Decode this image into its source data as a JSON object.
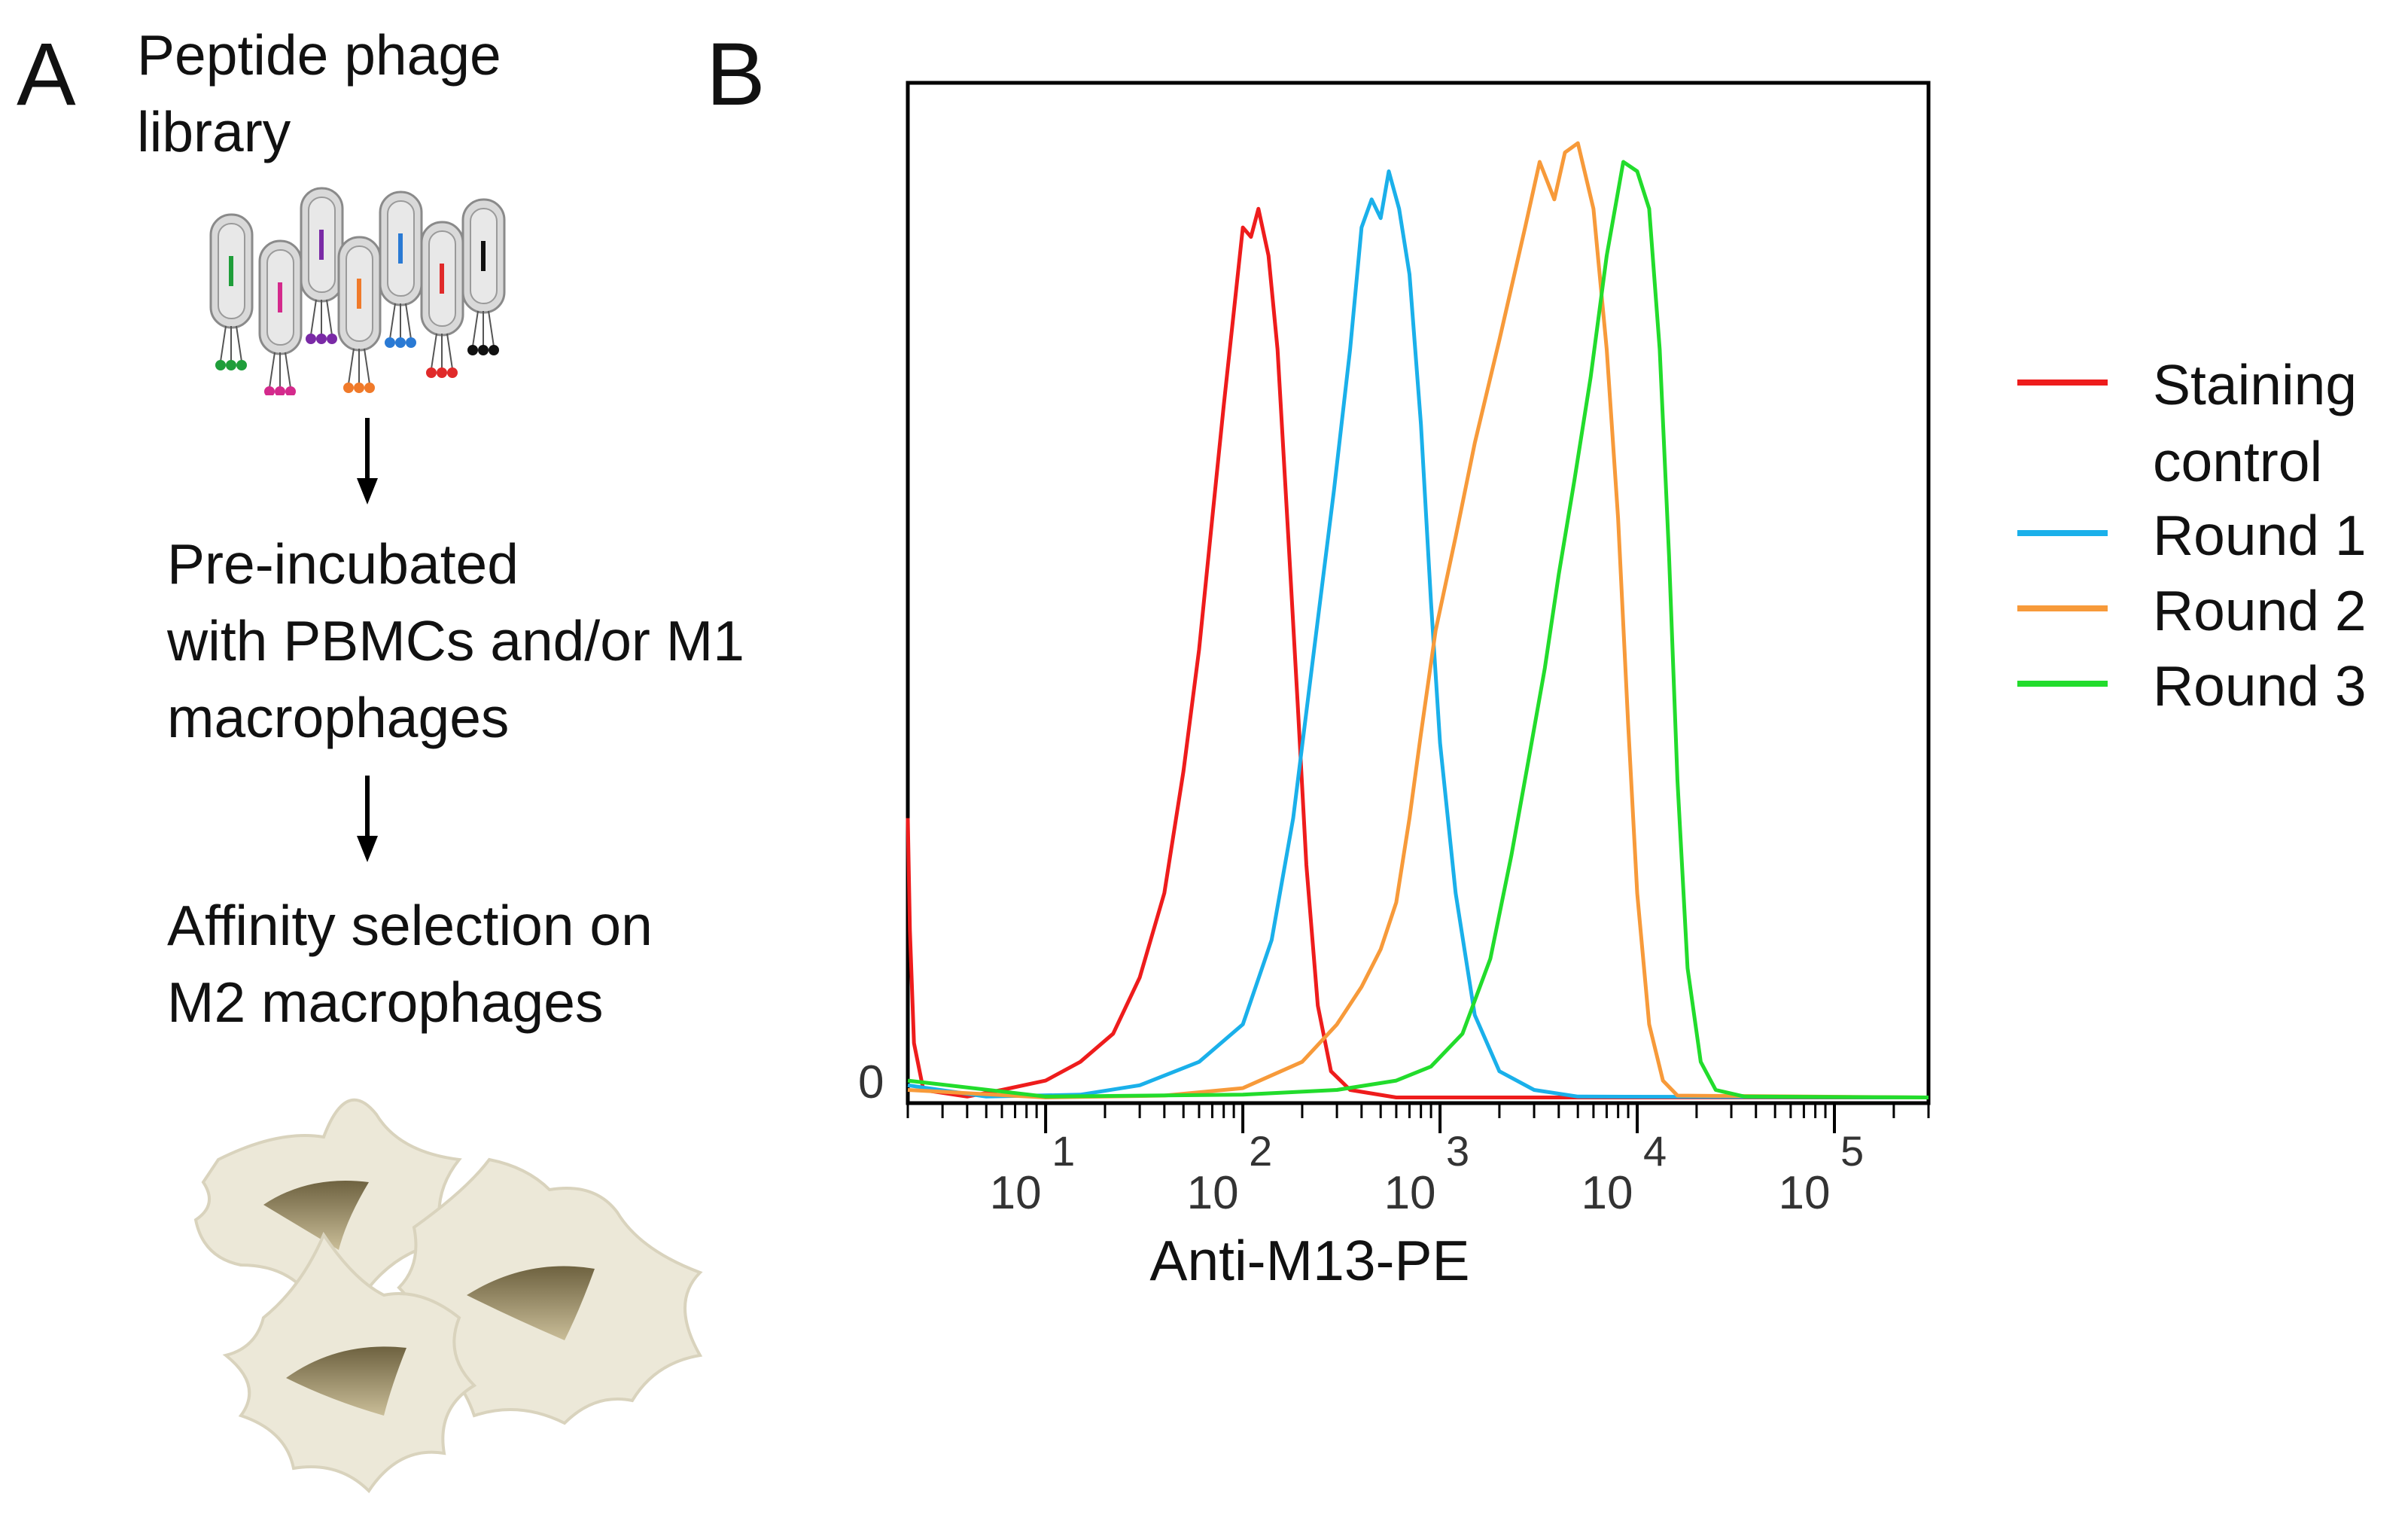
{
  "panel_a": {
    "letter": "A",
    "step1_line1": "Peptide phage",
    "step1_line2": "library",
    "step2_line1": "Pre-incubated",
    "step2_line2": "with PBMCs and/or M1",
    "step2_line3": "macrophages",
    "step3_line1": "Affinity selection on",
    "step3_line2": "M2 macrophages",
    "phage_colors": [
      "#1f9e3a",
      "#d42a8c",
      "#7a2aa6",
      "#f07a2a",
      "#2a7ad4",
      "#e02a2a",
      "#111111"
    ],
    "cell_fill": "#ece8d8",
    "nucleus_fill": "#8a7d5a"
  },
  "chart_data": {
    "type": "line",
    "panel_letter": "B",
    "title": "",
    "xlabel": "Anti-M13-PE",
    "ylabel": "",
    "x_scale": "log",
    "xlim": [
      2,
      300000
    ],
    "ylim": [
      0,
      1.0
    ],
    "y_tick_labels": [
      "0"
    ],
    "x_ticks": [
      {
        "value": 10,
        "base": "10",
        "exp": "1"
      },
      {
        "value": 100,
        "base": "10",
        "exp": "2"
      },
      {
        "value": 1000,
        "base": "10",
        "exp": "3"
      },
      {
        "value": 10000,
        "base": "10",
        "exp": "4"
      },
      {
        "value": 100000,
        "base": "10",
        "exp": "5"
      }
    ],
    "grid": false,
    "legend_position": "right",
    "series": [
      {
        "name": "Staining control",
        "color": "#ee1c1c",
        "points": [
          [
            2,
            0.3
          ],
          [
            2.05,
            0.18
          ],
          [
            2.15,
            0.06
          ],
          [
            2.4,
            0.01
          ],
          [
            4,
            0.003
          ],
          [
            6,
            0.01
          ],
          [
            10,
            0.02
          ],
          [
            15,
            0.04
          ],
          [
            22,
            0.07
          ],
          [
            30,
            0.13
          ],
          [
            40,
            0.22
          ],
          [
            50,
            0.35
          ],
          [
            60,
            0.48
          ],
          [
            70,
            0.62
          ],
          [
            80,
            0.74
          ],
          [
            90,
            0.84
          ],
          [
            100,
            0.93
          ],
          [
            110,
            0.92
          ],
          [
            120,
            0.95
          ],
          [
            135,
            0.9
          ],
          [
            150,
            0.8
          ],
          [
            170,
            0.6
          ],
          [
            190,
            0.42
          ],
          [
            210,
            0.25
          ],
          [
            240,
            0.1
          ],
          [
            280,
            0.03
          ],
          [
            350,
            0.01
          ],
          [
            600,
            0.002
          ],
          [
            300000,
            0.002
          ]
        ]
      },
      {
        "name": "Round 1",
        "color": "#1ab0ea",
        "points": [
          [
            2,
            0.015
          ],
          [
            5,
            0.003
          ],
          [
            15,
            0.005
          ],
          [
            30,
            0.015
          ],
          [
            60,
            0.04
          ],
          [
            100,
            0.08
          ],
          [
            140,
            0.17
          ],
          [
            180,
            0.3
          ],
          [
            230,
            0.48
          ],
          [
            290,
            0.65
          ],
          [
            350,
            0.8
          ],
          [
            400,
            0.93
          ],
          [
            450,
            0.96
          ],
          [
            500,
            0.94
          ],
          [
            550,
            0.99
          ],
          [
            620,
            0.95
          ],
          [
            700,
            0.88
          ],
          [
            800,
            0.72
          ],
          [
            900,
            0.53
          ],
          [
            1000,
            0.38
          ],
          [
            1200,
            0.22
          ],
          [
            1500,
            0.09
          ],
          [
            2000,
            0.03
          ],
          [
            3000,
            0.01
          ],
          [
            5000,
            0.003
          ],
          [
            300000,
            0.002
          ]
        ]
      },
      {
        "name": "Round 2",
        "color": "#f79a3a",
        "points": [
          [
            2,
            0.01
          ],
          [
            10,
            0.002
          ],
          [
            40,
            0.004
          ],
          [
            100,
            0.012
          ],
          [
            200,
            0.04
          ],
          [
            300,
            0.08
          ],
          [
            400,
            0.12
          ],
          [
            500,
            0.16
          ],
          [
            600,
            0.21
          ],
          [
            700,
            0.3
          ],
          [
            800,
            0.39
          ],
          [
            950,
            0.5
          ],
          [
            1200,
            0.6
          ],
          [
            1500,
            0.7
          ],
          [
            2000,
            0.81
          ],
          [
            2700,
            0.93
          ],
          [
            3200,
            1.0
          ],
          [
            3800,
            0.96
          ],
          [
            4300,
            1.01
          ],
          [
            5000,
            1.02
          ],
          [
            6000,
            0.95
          ],
          [
            7000,
            0.8
          ],
          [
            8000,
            0.62
          ],
          [
            9000,
            0.4
          ],
          [
            10000,
            0.22
          ],
          [
            11500,
            0.08
          ],
          [
            13500,
            0.02
          ],
          [
            16000,
            0.004
          ],
          [
            300000,
            0.002
          ]
        ]
      },
      {
        "name": "Round 3",
        "color": "#22dc2c",
        "points": [
          [
            2,
            0.02
          ],
          [
            10,
            0.003
          ],
          [
            100,
            0.005
          ],
          [
            300,
            0.01
          ],
          [
            600,
            0.02
          ],
          [
            900,
            0.035
          ],
          [
            1300,
            0.07
          ],
          [
            1800,
            0.15
          ],
          [
            2300,
            0.26
          ],
          [
            2800,
            0.36
          ],
          [
            3400,
            0.46
          ],
          [
            4000,
            0.56
          ],
          [
            4800,
            0.66
          ],
          [
            5800,
            0.77
          ],
          [
            7000,
            0.9
          ],
          [
            8500,
            1.0
          ],
          [
            10000,
            0.99
          ],
          [
            11500,
            0.95
          ],
          [
            13000,
            0.8
          ],
          [
            14500,
            0.58
          ],
          [
            16000,
            0.34
          ],
          [
            18000,
            0.14
          ],
          [
            21000,
            0.04
          ],
          [
            25000,
            0.01
          ],
          [
            35000,
            0.003
          ],
          [
            300000,
            0.002
          ]
        ]
      }
    ]
  }
}
